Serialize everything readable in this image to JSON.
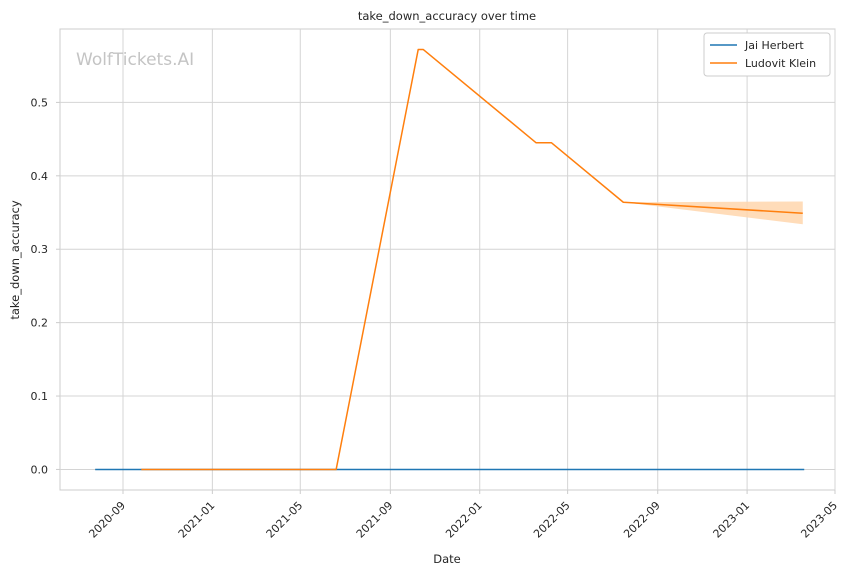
{
  "chart_data": {
    "type": "line",
    "title": "take_down_accuracy over time",
    "xlabel": "Date",
    "ylabel": "take_down_accuracy",
    "watermark": "WolfTickets.AI",
    "xlim": [
      "2020-06-07",
      "2023-05-01"
    ],
    "ylim": [
      -0.028,
      0.6
    ],
    "x_ticks": [
      "2020-09",
      "2021-01",
      "2021-05",
      "2021-09",
      "2022-01",
      "2022-05",
      "2022-09",
      "2023-01",
      "2023-05"
    ],
    "y_ticks": [
      "0.0",
      "0.1",
      "0.2",
      "0.3",
      "0.4",
      "0.5"
    ],
    "grid": true,
    "legend_position": "top-right",
    "series": [
      {
        "name": "Jai Herbert",
        "color": "#1f77b4",
        "points": [
          [
            "2020-07-25",
            0.0
          ],
          [
            "2023-03-20",
            0.0
          ]
        ]
      },
      {
        "name": "Ludovit Klein",
        "color": "#ff7f0e",
        "band_color": "#ffd6ad",
        "points": [
          [
            "2020-09-26",
            0.0
          ],
          [
            "2021-06-19",
            0.0
          ],
          [
            "2021-10-09",
            0.572
          ],
          [
            "2021-10-16",
            0.572
          ],
          [
            "2022-03-19",
            0.445
          ],
          [
            "2022-04-09",
            0.445
          ],
          [
            "2022-07-16",
            0.364
          ],
          [
            "2023-03-18",
            0.349
          ]
        ],
        "band": [
          [
            "2022-07-16",
            0.364,
            0.364
          ],
          [
            "2023-03-18",
            0.334,
            0.365
          ]
        ]
      }
    ]
  }
}
